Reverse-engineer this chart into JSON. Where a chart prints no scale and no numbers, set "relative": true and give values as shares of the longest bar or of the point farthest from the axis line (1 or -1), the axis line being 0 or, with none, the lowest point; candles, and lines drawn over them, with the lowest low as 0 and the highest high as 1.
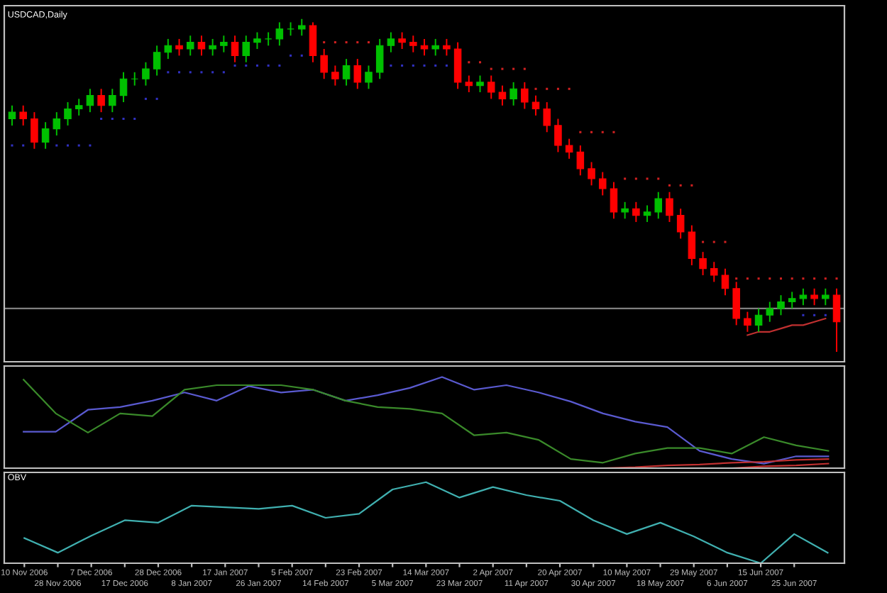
{
  "chart_data": [
    {
      "type": "candlestick",
      "title": "USDCAD,Daily",
      "relative": true,
      "tick_labels": false,
      "categories": [
        null,
        null,
        null,
        null,
        null,
        null,
        null,
        null,
        null,
        null,
        null,
        null,
        null,
        null,
        null,
        null,
        null,
        null,
        null,
        null,
        null,
        null,
        null,
        null,
        null,
        null,
        null,
        null,
        null,
        null,
        null,
        null,
        null,
        null,
        null,
        null,
        null,
        null,
        null,
        null,
        null,
        null,
        null,
        null,
        null,
        null,
        null,
        null,
        null,
        null,
        null,
        null,
        null,
        null,
        null,
        null,
        null,
        null,
        null,
        null,
        null,
        null,
        null,
        null,
        null,
        null,
        null,
        null,
        null,
        null,
        null,
        null,
        null,
        null,
        null
      ],
      "ohlc": [
        [
          0.7,
          0.74,
          0.68,
          0.72
        ],
        [
          0.72,
          0.74,
          0.68,
          0.7
        ],
        [
          0.7,
          0.72,
          0.61,
          0.63
        ],
        [
          0.63,
          0.69,
          0.61,
          0.67
        ],
        [
          0.67,
          0.72,
          0.65,
          0.7
        ],
        [
          0.7,
          0.75,
          0.68,
          0.73
        ],
        [
          0.73,
          0.76,
          0.71,
          0.74
        ],
        [
          0.74,
          0.79,
          0.72,
          0.77
        ],
        [
          0.77,
          0.79,
          0.72,
          0.74
        ],
        [
          0.74,
          0.79,
          0.72,
          0.77
        ],
        [
          0.77,
          0.84,
          0.75,
          0.82
        ],
        [
          0.82,
          0.84,
          0.8,
          0.82
        ],
        [
          0.82,
          0.87,
          0.8,
          0.85
        ],
        [
          0.85,
          0.92,
          0.83,
          0.9
        ],
        [
          0.9,
          0.94,
          0.88,
          0.92
        ],
        [
          0.92,
          0.94,
          0.89,
          0.91
        ],
        [
          0.91,
          0.95,
          0.89,
          0.93
        ],
        [
          0.93,
          0.95,
          0.89,
          0.91
        ],
        [
          0.91,
          0.94,
          0.89,
          0.92
        ],
        [
          0.92,
          0.95,
          0.9,
          0.93
        ],
        [
          0.93,
          0.95,
          0.87,
          0.89
        ],
        [
          0.89,
          0.95,
          0.87,
          0.93
        ],
        [
          0.93,
          0.96,
          0.91,
          0.94
        ],
        [
          0.94,
          0.96,
          0.92,
          0.94
        ],
        [
          0.94,
          0.99,
          0.92,
          0.97
        ],
        [
          0.97,
          0.99,
          0.95,
          0.97
        ],
        [
          0.97,
          1.0,
          0.95,
          0.98
        ],
        [
          0.98,
          0.99,
          0.87,
          0.89
        ],
        [
          0.89,
          0.91,
          0.82,
          0.84
        ],
        [
          0.84,
          0.86,
          0.8,
          0.82
        ],
        [
          0.82,
          0.88,
          0.8,
          0.86
        ],
        [
          0.86,
          0.88,
          0.79,
          0.81
        ],
        [
          0.81,
          0.86,
          0.79,
          0.84
        ],
        [
          0.84,
          0.94,
          0.82,
          0.92
        ],
        [
          0.92,
          0.96,
          0.9,
          0.94
        ],
        [
          0.94,
          0.96,
          0.91,
          0.93
        ],
        [
          0.93,
          0.95,
          0.9,
          0.92
        ],
        [
          0.92,
          0.94,
          0.89,
          0.91
        ],
        [
          0.91,
          0.94,
          0.89,
          0.92
        ],
        [
          0.92,
          0.94,
          0.89,
          0.91
        ],
        [
          0.91,
          0.93,
          0.79,
          0.81
        ],
        [
          0.81,
          0.83,
          0.78,
          0.8
        ],
        [
          0.8,
          0.83,
          0.78,
          0.81
        ],
        [
          0.81,
          0.83,
          0.76,
          0.78
        ],
        [
          0.78,
          0.8,
          0.74,
          0.76
        ],
        [
          0.76,
          0.81,
          0.74,
          0.79
        ],
        [
          0.79,
          0.81,
          0.73,
          0.75
        ],
        [
          0.75,
          0.77,
          0.71,
          0.73
        ],
        [
          0.73,
          0.75,
          0.66,
          0.68
        ],
        [
          0.68,
          0.7,
          0.6,
          0.62
        ],
        [
          0.62,
          0.64,
          0.58,
          0.6
        ],
        [
          0.6,
          0.62,
          0.53,
          0.55
        ],
        [
          0.55,
          0.57,
          0.5,
          0.52
        ],
        [
          0.52,
          0.54,
          0.47,
          0.49
        ],
        [
          0.49,
          0.51,
          0.4,
          0.42
        ],
        [
          0.42,
          0.45,
          0.4,
          0.43
        ],
        [
          0.43,
          0.45,
          0.39,
          0.41
        ],
        [
          0.41,
          0.44,
          0.39,
          0.42
        ],
        [
          0.42,
          0.48,
          0.4,
          0.46
        ],
        [
          0.46,
          0.48,
          0.39,
          0.41
        ],
        [
          0.41,
          0.43,
          0.34,
          0.36
        ],
        [
          0.36,
          0.38,
          0.26,
          0.28
        ],
        [
          0.28,
          0.3,
          0.23,
          0.25
        ],
        [
          0.25,
          0.27,
          0.21,
          0.23
        ],
        [
          0.23,
          0.25,
          0.17,
          0.19
        ],
        [
          0.19,
          0.21,
          0.08,
          0.1
        ],
        [
          0.1,
          0.12,
          0.06,
          0.08
        ],
        [
          0.08,
          0.13,
          0.06,
          0.11
        ],
        [
          0.11,
          0.15,
          0.09,
          0.13
        ],
        [
          0.13,
          0.17,
          0.11,
          0.15
        ],
        [
          0.15,
          0.18,
          0.13,
          0.16
        ],
        [
          0.16,
          0.19,
          0.14,
          0.17
        ],
        [
          0.17,
          0.19,
          0.14,
          0.16
        ],
        [
          0.16,
          0.19,
          0.14,
          0.17
        ],
        [
          0.17,
          0.19,
          0.0,
          0.09
        ]
      ],
      "colors": [
        "#00c000",
        "#ff0000",
        "#ff0000",
        "#00c000",
        "#00c000",
        "#00c000",
        "#00c000",
        "#00c000",
        "#ff0000",
        "#00c000",
        "#00c000",
        "#00c000",
        "#00c000",
        "#00c000",
        "#00c000",
        "#ff0000",
        "#00c000",
        "#ff0000",
        "#00c000",
        "#00c000",
        "#ff0000",
        "#00c000",
        "#00c000",
        "#00c000",
        "#00c000",
        "#00c000",
        "#00c000",
        "#ff0000",
        "#ff0000",
        "#ff0000",
        "#00c000",
        "#ff0000",
        "#00c000",
        "#00c000",
        "#00c000",
        "#ff0000",
        "#ff0000",
        "#ff0000",
        "#00c000",
        "#ff0000",
        "#ff0000",
        "#ff0000",
        "#00c000",
        "#ff0000",
        "#ff0000",
        "#00c000",
        "#ff0000",
        "#ff0000",
        "#ff0000",
        "#ff0000",
        "#ff0000",
        "#ff0000",
        "#ff0000",
        "#ff0000",
        "#ff0000",
        "#00c000",
        "#ff0000",
        "#00c000",
        "#00c000",
        "#ff0000",
        "#ff0000",
        "#ff0000",
        "#ff0000",
        "#ff0000",
        "#ff0000",
        "#ff0000",
        "#ff0000",
        "#00c000",
        "#00c000",
        "#00c000",
        "#00c000",
        "#00c000",
        "#ff0000",
        "#00c000",
        "#ff0000"
      ],
      "series": [
        {
          "type": "scatter",
          "color": "#3030c0",
          "values": [
            0.62,
            0.62,
            null,
            null,
            0.62,
            0.62,
            0.62,
            0.62,
            0.7,
            0.7,
            0.7,
            0.7,
            0.76,
            0.76,
            0.84,
            0.84,
            0.84,
            0.84,
            0.84,
            0.84,
            0.86,
            0.86,
            0.86,
            0.86,
            0.86,
            0.89,
            0.89,
            null,
            null,
            null,
            null,
            null,
            null,
            null,
            0.86,
            0.86,
            0.86,
            0.86,
            0.86,
            0.86,
            null,
            null,
            null,
            null,
            null,
            null,
            null,
            null,
            null,
            null,
            null,
            null,
            null,
            null,
            null,
            null,
            null,
            null,
            null,
            null,
            null,
            null,
            null,
            null,
            null,
            null,
            null,
            null,
            null,
            null,
            null,
            0.11,
            0.11,
            0.11,
            null
          ]
        },
        {
          "type": "scatter",
          "color": "#d02020",
          "values": [
            null,
            null,
            null,
            null,
            null,
            null,
            null,
            null,
            null,
            null,
            null,
            null,
            null,
            null,
            null,
            null,
            null,
            null,
            null,
            null,
            null,
            null,
            null,
            null,
            null,
            null,
            null,
            null,
            0.93,
            0.93,
            0.93,
            0.93,
            0.93,
            null,
            null,
            null,
            null,
            null,
            null,
            null,
            null,
            0.87,
            0.87,
            0.85,
            0.85,
            0.85,
            0.85,
            0.79,
            0.79,
            0.79,
            0.79,
            0.66,
            0.66,
            0.66,
            0.66,
            0.52,
            0.52,
            0.52,
            0.52,
            0.5,
            0.5,
            0.5,
            0.33,
            0.33,
            0.33,
            0.22,
            0.22,
            0.22,
            0.22,
            0.22,
            0.22,
            0.22,
            0.22,
            0.22,
            0.22
          ]
        },
        {
          "type": "line",
          "color": "#c03030",
          "values": [
            null,
            null,
            null,
            null,
            null,
            null,
            null,
            null,
            null,
            null,
            null,
            null,
            null,
            null,
            null,
            null,
            null,
            null,
            null,
            null,
            null,
            null,
            null,
            null,
            null,
            null,
            null,
            null,
            null,
            null,
            null,
            null,
            null,
            null,
            null,
            null,
            null,
            null,
            null,
            null,
            null,
            null,
            null,
            null,
            null,
            null,
            null,
            null,
            null,
            null,
            null,
            null,
            null,
            null,
            null,
            null,
            null,
            null,
            null,
            null,
            null,
            null,
            null,
            null,
            null,
            null,
            0.05,
            0.06,
            0.06,
            0.07,
            0.08,
            0.08,
            0.09,
            0.1,
            null
          ]
        }
      ],
      "ref_lines": [
        {
          "axis": "y",
          "value": 0.13,
          "color": "#808080"
        }
      ]
    },
    {
      "type": "line",
      "relative": true,
      "tick_labels": false,
      "categories": [
        null,
        null,
        null,
        null,
        null,
        null,
        null,
        null,
        null,
        null,
        null,
        null,
        null,
        null,
        null,
        null,
        null,
        null,
        null,
        null,
        null,
        null,
        null,
        null,
        null,
        null
      ],
      "series": [
        {
          "color": "#5a5ad0",
          "values": [
            0.4,
            0.4,
            0.64,
            0.67,
            0.74,
            0.83,
            0.74,
            0.9,
            0.83,
            0.86,
            0.74,
            0.8,
            0.88,
            1.0,
            0.86,
            0.91,
            0.83,
            0.73,
            0.6,
            0.51,
            0.45,
            0.19,
            0.1,
            0.05,
            0.13,
            0.13
          ]
        },
        {
          "color": "#3a8a2a",
          "values": [
            0.97,
            0.6,
            0.39,
            0.6,
            0.57,
            0.86,
            0.91,
            0.91,
            0.91,
            0.86,
            0.74,
            0.67,
            0.65,
            0.6,
            0.36,
            0.39,
            0.31,
            0.1,
            0.06,
            0.16,
            0.22,
            0.22,
            0.16,
            0.34,
            0.25,
            0.19
          ]
        },
        {
          "color": "#c03030",
          "values": [
            null,
            null,
            null,
            null,
            null,
            null,
            null,
            null,
            null,
            null,
            null,
            null,
            null,
            null,
            null,
            null,
            null,
            null,
            0.0,
            0.01,
            0.03,
            0.04,
            0.06,
            0.07,
            0.09,
            0.1
          ]
        },
        {
          "color": "#c03030",
          "values": [
            null,
            null,
            null,
            null,
            null,
            null,
            null,
            null,
            null,
            null,
            null,
            null,
            null,
            null,
            null,
            null,
            null,
            null,
            null,
            null,
            null,
            null,
            0.0,
            0.02,
            0.03,
            0.05
          ]
        }
      ]
    },
    {
      "type": "line",
      "title": "OBV",
      "relative": true,
      "tick_labels": "x",
      "categories": [
        "10 Nov 2006",
        "28 Nov 2006",
        "7 Dec 2006",
        "17 Dec 2006",
        "28 Dec 2006",
        "8 Jan 2007",
        "17 Jan 2007",
        "26 Jan 2007",
        "5 Feb 2007",
        "14 Feb 2007",
        "23 Feb 2007",
        "5 Mar 2007",
        "14 Mar 2007",
        "23 Mar 2007",
        "2 Apr 2007",
        "11 Apr 2007",
        "20 Apr 2007",
        "30 Apr 2007",
        "10 May 2007",
        "18 May 2007",
        "29 May 2007",
        "6 Jun 2007",
        "15 Jun 2007",
        "25 Jun 2007",
        null
      ],
      "series": [
        {
          "color": "#40b0b0",
          "values": [
            0.31,
            0.13,
            0.34,
            0.53,
            0.5,
            0.71,
            0.69,
            0.67,
            0.71,
            0.56,
            0.61,
            0.91,
            1.0,
            0.81,
            0.94,
            0.84,
            0.77,
            0.53,
            0.36,
            0.5,
            0.33,
            0.13,
            0.0,
            0.36,
            0.13
          ]
        }
      ]
    }
  ]
}
